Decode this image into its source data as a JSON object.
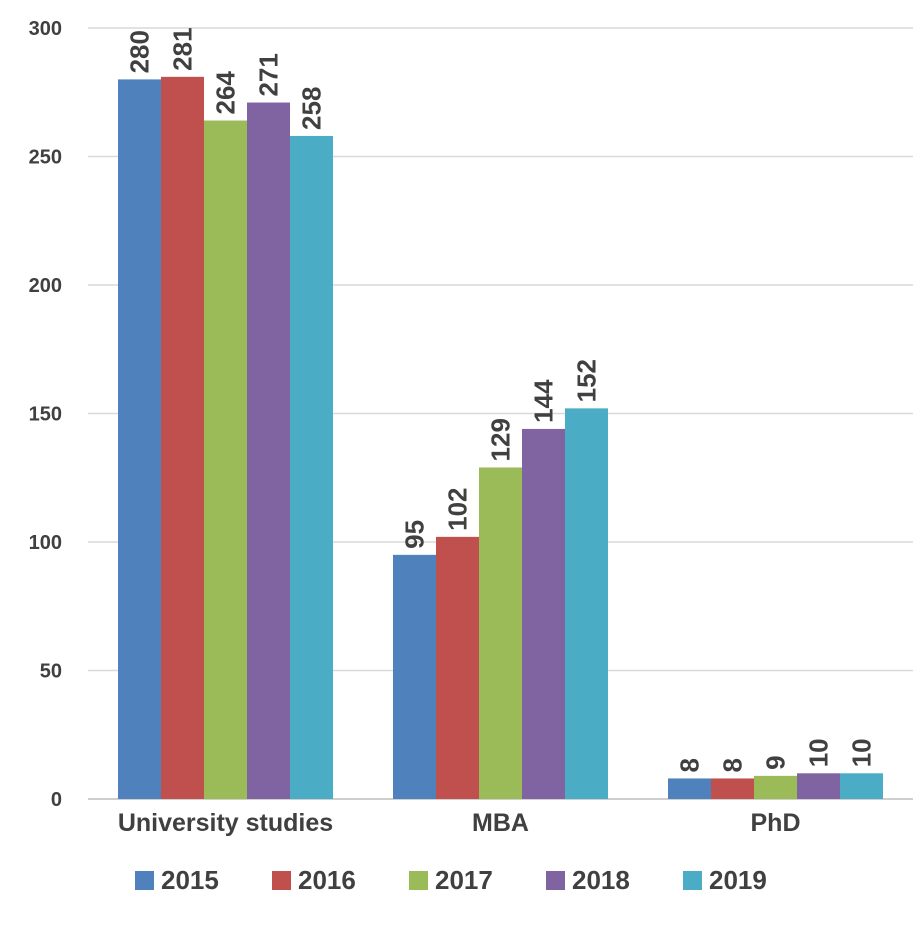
{
  "chart_data": {
    "type": "bar",
    "categories": [
      "University studies",
      "MBA",
      "PhD"
    ],
    "series": [
      {
        "name": "2015",
        "color": "#4f81bd",
        "values": [
          280,
          95,
          8
        ]
      },
      {
        "name": "2016",
        "color": "#c0504d",
        "values": [
          281,
          102,
          8
        ]
      },
      {
        "name": "2017",
        "color": "#9bbb59",
        "values": [
          264,
          129,
          9
        ]
      },
      {
        "name": "2018",
        "color": "#8064a2",
        "values": [
          271,
          144,
          10
        ]
      },
      {
        "name": "2019",
        "color": "#4bacc6",
        "values": [
          258,
          152,
          10
        ]
      }
    ],
    "ylim": [
      0,
      300
    ],
    "yticks": [
      0,
      50,
      100,
      150,
      200,
      250,
      300
    ],
    "grid": true,
    "data_labels": true,
    "legend_position": "bottom"
  }
}
